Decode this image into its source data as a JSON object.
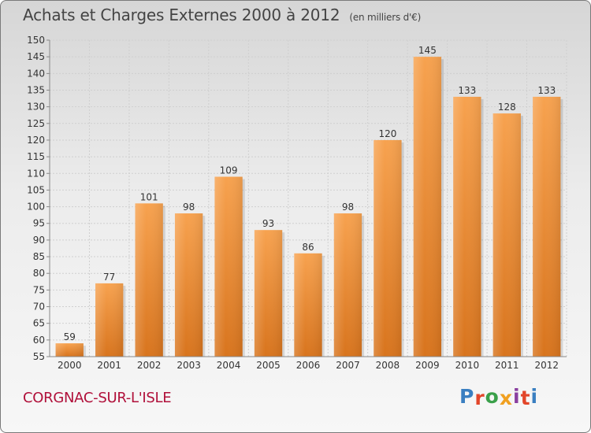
{
  "header": {
    "title": "Achats et Charges Externes 2000 à 2012",
    "subtitle": "(en milliers d'€)"
  },
  "footer": {
    "location": "CORGNAC-SUR-L'ISLE",
    "brand": "Proxiti",
    "brand_colors": [
      "#3a7fc1",
      "#e2462a",
      "#3aa04a",
      "#f0a020",
      "#8a3fa0",
      "#e2462a",
      "#3a7fc1"
    ]
  },
  "colors": {
    "bar_top": "#f7a24f",
    "bar_bottom": "#d8741d",
    "grid": "#cfcfcf",
    "axis": "#888888",
    "text": "#333333"
  },
  "chart_data": {
    "type": "bar",
    "title": "Achats et Charges Externes 2000 à 2012",
    "subtitle": "(en milliers d'€)",
    "categories": [
      "2000",
      "2001",
      "2002",
      "2003",
      "2004",
      "2005",
      "2006",
      "2007",
      "2008",
      "2009",
      "2010",
      "2011",
      "2012"
    ],
    "values": [
      59,
      77,
      101,
      98,
      109,
      93,
      86,
      98,
      120,
      145,
      133,
      128,
      133
    ],
    "ylim": [
      55,
      150
    ],
    "ytick_step": 5,
    "grid": true,
    "legend": "none",
    "data_labels": true
  }
}
